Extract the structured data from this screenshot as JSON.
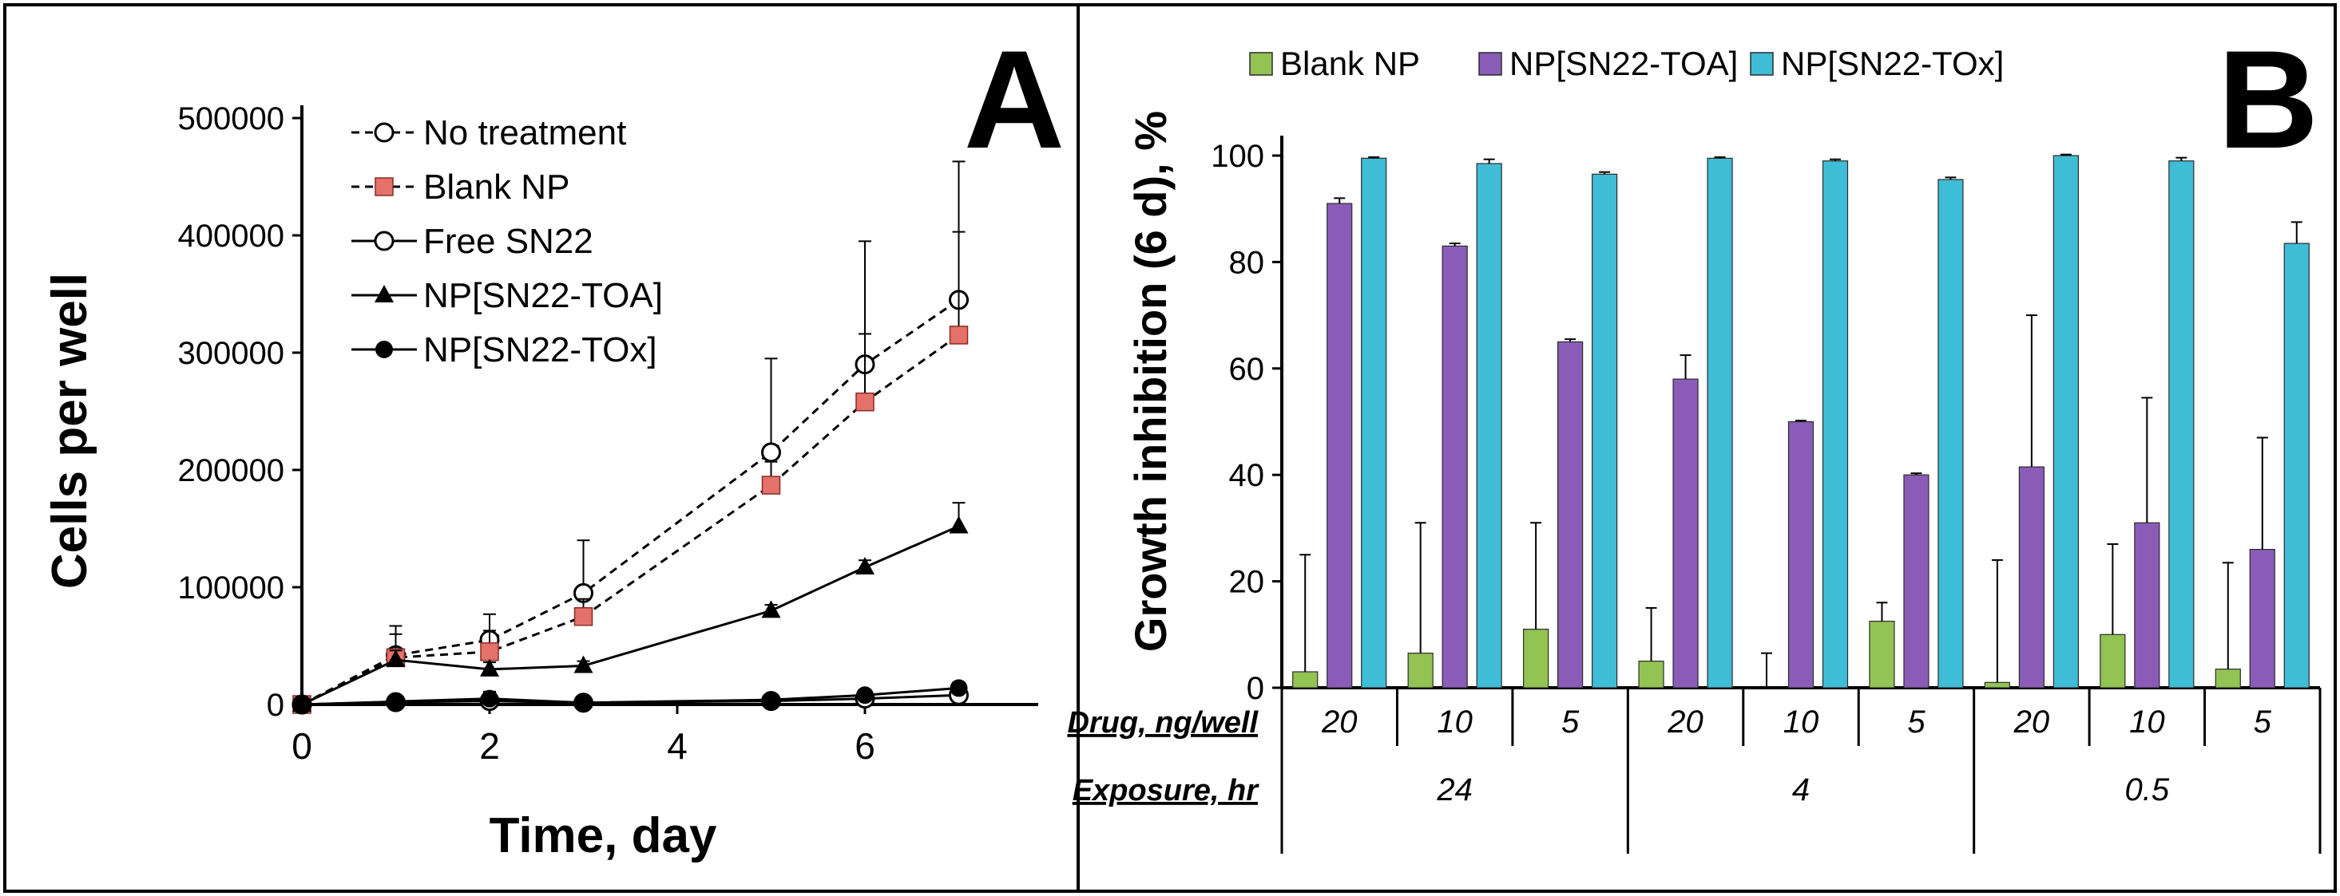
{
  "chart_data": [
    {
      "panel": "A",
      "type": "line",
      "xlabel": "Time, day",
      "ylabel": "Cells per well",
      "xlim": [
        0,
        8
      ],
      "ylim": [
        0,
        500000
      ],
      "x_ticks": [
        "0",
        "2",
        "4",
        "6"
      ],
      "y_ticks": [
        "0",
        "100000",
        "200000",
        "300000",
        "400000",
        "500000"
      ],
      "legend_position": "top-left",
      "series": [
        {
          "name": "No treatment",
          "marker": "open-circle",
          "dash": "dashed",
          "color": "#000000",
          "x": [
            0,
            1,
            2,
            3,
            5,
            6,
            7
          ],
          "y": [
            0,
            42000,
            55000,
            95000,
            215000,
            290000,
            345000
          ],
          "err": [
            0,
            25000,
            22000,
            45000,
            80000,
            105000,
            118000
          ]
        },
        {
          "name": "Blank NP",
          "marker": "square",
          "dash": "dashed",
          "color": "#e4726a",
          "x": [
            0,
            1,
            2,
            3,
            5,
            6,
            7
          ],
          "y": [
            0,
            40000,
            45000,
            75000,
            187000,
            258000,
            315000
          ],
          "err": [
            0,
            20000,
            18000,
            15000,
            20000,
            58000,
            88000
          ]
        },
        {
          "name": "Free SN22",
          "marker": "open-circle",
          "dash": "solid",
          "color": "#000000",
          "x": [
            0,
            1,
            2,
            3,
            5,
            6,
            7
          ],
          "y": [
            0,
            2000,
            3000,
            1500,
            3000,
            5000,
            8000
          ],
          "err": [
            0,
            3000,
            5000,
            3000,
            4000,
            5000,
            6000
          ]
        },
        {
          "name": "NP[SN22-TOA]",
          "marker": "triangle",
          "dash": "solid",
          "color": "#000000",
          "x": [
            0,
            1,
            2,
            3,
            5,
            6,
            7
          ],
          "y": [
            0,
            38000,
            30000,
            33000,
            80000,
            117000,
            152000
          ],
          "err": [
            0,
            8000,
            6000,
            4000,
            5000,
            6000,
            20000
          ]
        },
        {
          "name": "NP[SN22-TOx]",
          "marker": "filled-circle",
          "dash": "solid",
          "color": "#000000",
          "x": [
            0,
            1,
            2,
            3,
            5,
            6,
            7
          ],
          "y": [
            0,
            2500,
            5000,
            1500,
            4000,
            8000,
            14000
          ],
          "err": [
            0,
            3000,
            6000,
            2000,
            3000,
            4000,
            5000
          ]
        }
      ],
      "panel_label": "A"
    },
    {
      "panel": "B",
      "type": "bar",
      "ylabel": "Growth inhibition (6 d), %",
      "ylim": [
        0,
        100
      ],
      "y_ticks": [
        "0",
        "20",
        "40",
        "60",
        "80",
        "100"
      ],
      "legend_position": "top",
      "categories": [
        "20",
        "10",
        "5",
        "20",
        "10",
        "5",
        "20",
        "10",
        "5"
      ],
      "row_headers": {
        "drug": "Drug, ng/well",
        "exposure": "Exposure, hr"
      },
      "exposure_groups": [
        {
          "label": "24",
          "span": 3
        },
        {
          "label": "4",
          "span": 3
        },
        {
          "label": "0.5",
          "span": 3
        }
      ],
      "series": [
        {
          "name": "Blank NP",
          "color": "#92c353",
          "values": [
            3,
            6.5,
            11,
            5,
            0,
            12.5,
            1,
            10,
            3.5
          ],
          "err": [
            22,
            24.5,
            20,
            10,
            6.5,
            3.5,
            23,
            17,
            20
          ]
        },
        {
          "name": "NP[SN22-TOA]",
          "color": "#8a5cb8",
          "values": [
            91,
            83,
            65,
            58,
            50,
            40,
            41.5,
            31,
            26
          ],
          "err": [
            1,
            0.5,
            0.5,
            4.5,
            0.2,
            0.3,
            28.5,
            23.5,
            21
          ]
        },
        {
          "name": "NP[SN22-TOx]",
          "color": "#3fbcd6",
          "values": [
            99.5,
            98.5,
            96.5,
            99.5,
            99,
            95.5,
            100,
            99,
            83.5
          ],
          "err": [
            0.2,
            0.8,
            0.4,
            0.2,
            0.3,
            0.4,
            0.2,
            0.6,
            4
          ]
        }
      ],
      "panel_label": "B"
    }
  ]
}
